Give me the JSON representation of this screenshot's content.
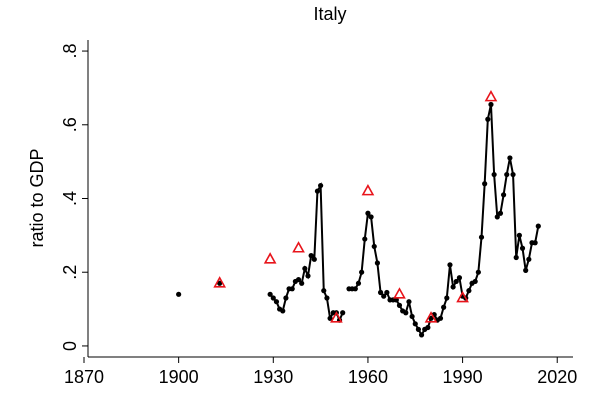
{
  "chart_data": {
    "type": "line",
    "title": "Italy",
    "y_label": "ratio to GDP",
    "xlim": [
      1870,
      2025
    ],
    "xticks": [
      1870,
      1900,
      1930,
      1960,
      1990,
      2020
    ],
    "ylim": [
      -0.03,
      0.83
    ],
    "yticks": [
      0,
      {
        "value": 0.2,
        "label": ".2"
      },
      {
        "value": 0.4,
        "label": ".4"
      },
      {
        "value": 0.6,
        "label": ".6"
      },
      {
        "value": 0.8,
        "label": ".8"
      }
    ],
    "grid": false,
    "series": [
      {
        "color": "#000000",
        "marker": "dot",
        "x": [
          1900,
          1901,
          1913,
          1914,
          1929,
          1930,
          1931,
          1932,
          1933,
          1934,
          1935,
          1936,
          1937,
          1938,
          1939,
          1940,
          1941,
          1942,
          1943,
          1944,
          1945,
          1946,
          1947,
          1948,
          1949,
          1950,
          1951,
          1952,
          1953,
          1954,
          1955,
          1956,
          1957,
          1958,
          1959,
          1960,
          1961,
          1962,
          1963,
          1964,
          1965,
          1966,
          1967,
          1968,
          1969,
          1970,
          1971,
          1972,
          1973,
          1974,
          1975,
          1976,
          1977,
          1978,
          1979,
          1980,
          1981,
          1982,
          1983,
          1984,
          1985,
          1986,
          1987,
          1988,
          1989,
          1990,
          1991,
          1992,
          1993,
          1994,
          1995,
          1996,
          1997,
          1998,
          1999,
          2000,
          2001,
          2002,
          2003,
          2004,
          2005,
          2006,
          2007,
          2008,
          2009,
          2010,
          2011,
          2012,
          2013,
          2014
        ],
        "values": [
          0.14,
          null,
          0.17,
          null,
          0.14,
          0.13,
          0.12,
          0.1,
          0.095,
          0.13,
          0.155,
          0.155,
          0.175,
          0.18,
          0.17,
          0.21,
          0.19,
          0.245,
          0.235,
          0.42,
          0.435,
          0.15,
          0.13,
          0.075,
          0.09,
          0.09,
          0.07,
          0.09,
          null,
          0.155,
          0.155,
          0.155,
          0.17,
          0.2,
          0.29,
          0.36,
          0.35,
          0.27,
          0.225,
          0.145,
          0.135,
          0.145,
          0.125,
          0.125,
          0.125,
          0.11,
          0.095,
          0.09,
          0.12,
          0.08,
          0.06,
          0.045,
          0.03,
          0.045,
          0.05,
          0.075,
          0.085,
          0.07,
          0.075,
          0.105,
          0.13,
          0.22,
          0.16,
          0.175,
          0.185,
          0.135,
          0.13,
          0.15,
          0.17,
          0.175,
          0.2,
          0.295,
          0.44,
          0.615,
          0.655,
          0.465,
          0.35,
          0.36,
          0.41,
          0.465,
          0.51,
          0.465,
          0.24,
          0.3,
          0.265,
          0.205,
          0.235,
          0.28,
          0.28,
          0.325
        ]
      },
      {
        "color": "#e8141b",
        "marker": "triangle",
        "x": [
          1913,
          1929,
          1938,
          1950,
          1960,
          1970,
          1980,
          1990,
          1999
        ],
        "values": [
          0.17,
          0.235,
          0.265,
          0.075,
          0.42,
          0.14,
          0.075,
          0.13,
          0.675
        ]
      }
    ]
  }
}
